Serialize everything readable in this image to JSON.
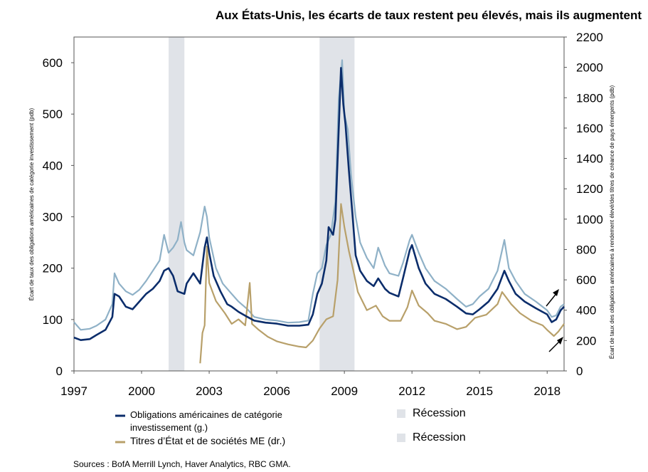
{
  "chart_data": {
    "type": "line",
    "title": "Aux États-Unis, les écarts de taux restent peu élevés, mais ils augmentent",
    "ylabel_left": "Écart de taux des obligations américaines de catégorie investissement (pdb)",
    "ylabel_right": "Écart de taux des obligations américaines à rendement élevé/des titres de créance de pays émergents (pdb)",
    "x_ticks": [
      "1997",
      "2000",
      "2003",
      "2006",
      "2009",
      "2012",
      "2015",
      "2018"
    ],
    "xlim": [
      1997,
      2018.75
    ],
    "left_axis": {
      "ylim": [
        0,
        650
      ],
      "ticks": [
        "0",
        "100",
        "200",
        "300",
        "400",
        "500",
        "600"
      ]
    },
    "right_axis": {
      "ylim": [
        0,
        2200
      ],
      "ticks": [
        "0",
        "200",
        "400",
        "600",
        "800",
        "1000",
        "1200",
        "1400",
        "1600",
        "1800",
        "2000",
        "2200"
      ]
    },
    "recessions": [
      [
        2001.2,
        2001.9
      ],
      [
        2007.9,
        2009.45
      ]
    ],
    "series": [
      {
        "name": "Obligations américaines de catégorie investissement (g.)",
        "axis": "left",
        "color": "#0b2d6b",
        "points": [
          [
            1997,
            65
          ],
          [
            1997.3,
            60
          ],
          [
            1997.7,
            62
          ],
          [
            1998,
            70
          ],
          [
            1998.4,
            80
          ],
          [
            1998.7,
            105
          ],
          [
            1998.8,
            150
          ],
          [
            1999,
            145
          ],
          [
            1999.3,
            125
          ],
          [
            1999.6,
            120
          ],
          [
            1999.9,
            135
          ],
          [
            2000.2,
            150
          ],
          [
            2000.5,
            160
          ],
          [
            2000.8,
            175
          ],
          [
            2001,
            195
          ],
          [
            2001.2,
            200
          ],
          [
            2001.4,
            185
          ],
          [
            2001.6,
            155
          ],
          [
            2001.9,
            150
          ],
          [
            2002,
            170
          ],
          [
            2002.3,
            190
          ],
          [
            2002.6,
            170
          ],
          [
            2002.8,
            240
          ],
          [
            2002.9,
            260
          ],
          [
            2003,
            230
          ],
          [
            2003.2,
            185
          ],
          [
            2003.5,
            155
          ],
          [
            2003.8,
            130
          ],
          [
            2004,
            125
          ],
          [
            2004.3,
            115
          ],
          [
            2004.7,
            105
          ],
          [
            2005,
            98
          ],
          [
            2005.5,
            94
          ],
          [
            2006,
            92
          ],
          [
            2006.5,
            88
          ],
          [
            2007,
            88
          ],
          [
            2007.4,
            90
          ],
          [
            2007.6,
            110
          ],
          [
            2007.8,
            150
          ],
          [
            2008,
            170
          ],
          [
            2008.2,
            215
          ],
          [
            2008.3,
            280
          ],
          [
            2008.5,
            265
          ],
          [
            2008.6,
            295
          ],
          [
            2008.75,
            470
          ],
          [
            2008.85,
            590
          ],
          [
            2008.95,
            520
          ],
          [
            2009.05,
            480
          ],
          [
            2009.2,
            390
          ],
          [
            2009.35,
            310
          ],
          [
            2009.5,
            225
          ],
          [
            2009.7,
            195
          ],
          [
            2010,
            175
          ],
          [
            2010.3,
            165
          ],
          [
            2010.5,
            180
          ],
          [
            2010.8,
            160
          ],
          [
            2011,
            152
          ],
          [
            2011.4,
            145
          ],
          [
            2011.6,
            180
          ],
          [
            2011.9,
            235
          ],
          [
            2012,
            245
          ],
          [
            2012.3,
            200
          ],
          [
            2012.6,
            170
          ],
          [
            2013,
            150
          ],
          [
            2013.5,
            140
          ],
          [
            2014,
            125
          ],
          [
            2014.4,
            112
          ],
          [
            2014.7,
            110
          ],
          [
            2015,
            120
          ],
          [
            2015.4,
            135
          ],
          [
            2015.8,
            160
          ],
          [
            2016.1,
            195
          ],
          [
            2016.3,
            175
          ],
          [
            2016.6,
            150
          ],
          [
            2017,
            135
          ],
          [
            2017.5,
            122
          ],
          [
            2018,
            110
          ],
          [
            2018.2,
            95
          ],
          [
            2018.4,
            100
          ],
          [
            2018.6,
            118
          ],
          [
            2018.75,
            125
          ]
        ]
      },
      {
        "name": "Titres d’État et de sociétés ME (dr.)",
        "axis": "right",
        "color": "#b8a06a",
        "points": [
          [
            2002.6,
            50
          ],
          [
            2002.7,
            250
          ],
          [
            2002.8,
            300
          ],
          [
            2002.9,
            820
          ],
          [
            2003,
            580
          ],
          [
            2003.3,
            460
          ],
          [
            2003.7,
            380
          ],
          [
            2004,
            310
          ],
          [
            2004.3,
            340
          ],
          [
            2004.6,
            300
          ],
          [
            2004.8,
            580
          ],
          [
            2004.9,
            310
          ],
          [
            2005.2,
            270
          ],
          [
            2005.6,
            225
          ],
          [
            2006,
            195
          ],
          [
            2006.5,
            175
          ],
          [
            2007,
            160
          ],
          [
            2007.3,
            155
          ],
          [
            2007.6,
            200
          ],
          [
            2007.9,
            280
          ],
          [
            2008.2,
            340
          ],
          [
            2008.5,
            360
          ],
          [
            2008.7,
            600
          ],
          [
            2008.85,
            1100
          ],
          [
            2009,
            950
          ],
          [
            2009.2,
            790
          ],
          [
            2009.4,
            660
          ],
          [
            2009.6,
            520
          ],
          [
            2010,
            400
          ],
          [
            2010.4,
            430
          ],
          [
            2010.7,
            360
          ],
          [
            2011,
            330
          ],
          [
            2011.5,
            330
          ],
          [
            2011.8,
            420
          ],
          [
            2012,
            530
          ],
          [
            2012.3,
            430
          ],
          [
            2012.7,
            380
          ],
          [
            2013,
            330
          ],
          [
            2013.5,
            310
          ],
          [
            2014,
            275
          ],
          [
            2014.4,
            290
          ],
          [
            2014.8,
            350
          ],
          [
            2015.3,
            370
          ],
          [
            2015.8,
            440
          ],
          [
            2016,
            520
          ],
          [
            2016.4,
            440
          ],
          [
            2016.8,
            380
          ],
          [
            2017.3,
            330
          ],
          [
            2017.8,
            300
          ],
          [
            2018,
            270
          ],
          [
            2018.3,
            230
          ],
          [
            2018.5,
            260
          ],
          [
            2018.75,
            310
          ]
        ]
      },
      {
        "name": "",
        "axis": "left",
        "color": "#8fb1c7",
        "points": [
          [
            1997,
            95
          ],
          [
            1997.3,
            80
          ],
          [
            1997.7,
            82
          ],
          [
            1998,
            88
          ],
          [
            1998.4,
            100
          ],
          [
            1998.7,
            130
          ],
          [
            1998.8,
            190
          ],
          [
            1999,
            170
          ],
          [
            1999.3,
            155
          ],
          [
            1999.6,
            148
          ],
          [
            1999.9,
            158
          ],
          [
            2000.2,
            175
          ],
          [
            2000.5,
            195
          ],
          [
            2000.8,
            215
          ],
          [
            2001,
            265
          ],
          [
            2001.2,
            230
          ],
          [
            2001.4,
            240
          ],
          [
            2001.6,
            255
          ],
          [
            2001.75,
            290
          ],
          [
            2001.9,
            250
          ],
          [
            2002,
            235
          ],
          [
            2002.3,
            225
          ],
          [
            2002.6,
            270
          ],
          [
            2002.8,
            320
          ],
          [
            2002.9,
            300
          ],
          [
            2003,
            260
          ],
          [
            2003.3,
            200
          ],
          [
            2003.6,
            170
          ],
          [
            2004,
            150
          ],
          [
            2004.3,
            135
          ],
          [
            2004.7,
            120
          ],
          [
            2005,
            105
          ],
          [
            2005.5,
            100
          ],
          [
            2006,
            98
          ],
          [
            2006.5,
            94
          ],
          [
            2007,
            95
          ],
          [
            2007.4,
            98
          ],
          [
            2007.6,
            150
          ],
          [
            2007.8,
            190
          ],
          [
            2008,
            200
          ],
          [
            2008.2,
            245
          ],
          [
            2008.4,
            265
          ],
          [
            2008.6,
            330
          ],
          [
            2008.75,
            530
          ],
          [
            2008.9,
            605
          ],
          [
            2009,
            500
          ],
          [
            2009.15,
            470
          ],
          [
            2009.3,
            380
          ],
          [
            2009.5,
            300
          ],
          [
            2009.7,
            250
          ],
          [
            2010,
            220
          ],
          [
            2010.3,
            200
          ],
          [
            2010.5,
            240
          ],
          [
            2010.8,
            205
          ],
          [
            2011,
            190
          ],
          [
            2011.4,
            185
          ],
          [
            2011.6,
            210
          ],
          [
            2011.9,
            255
          ],
          [
            2012,
            265
          ],
          [
            2012.3,
            230
          ],
          [
            2012.6,
            200
          ],
          [
            2013,
            175
          ],
          [
            2013.5,
            160
          ],
          [
            2014,
            140
          ],
          [
            2014.4,
            125
          ],
          [
            2014.7,
            130
          ],
          [
            2015,
            145
          ],
          [
            2015.4,
            160
          ],
          [
            2015.8,
            195
          ],
          [
            2016.1,
            255
          ],
          [
            2016.3,
            200
          ],
          [
            2016.6,
            175
          ],
          [
            2017,
            150
          ],
          [
            2017.5,
            135
          ],
          [
            2018,
            118
          ],
          [
            2018.2,
            105
          ],
          [
            2018.4,
            108
          ],
          [
            2018.6,
            125
          ],
          [
            2018.75,
            130
          ]
        ]
      }
    ],
    "legend": [
      {
        "label_line1": "Obligations américaines de catégorie",
        "label_line2": "investissement (g.)",
        "color": "#0b2d6b",
        "kind": "line"
      },
      {
        "label": "Titres d’État et de sociétés ME (dr.)",
        "color": "#b8a06a",
        "kind": "line"
      },
      {
        "label": "Récession",
        "color": "#e0e3e8",
        "kind": "box"
      },
      {
        "label": "Récession",
        "color": "#e0e3e8",
        "kind": "box"
      }
    ],
    "grid": false,
    "legend_position": "bottom"
  },
  "sources": "Sources : BofA Merrill Lynch, Haver Analytics, RBC GMA.",
  "colors": {
    "recession": "#e0e3e8",
    "axis": "#555555"
  }
}
